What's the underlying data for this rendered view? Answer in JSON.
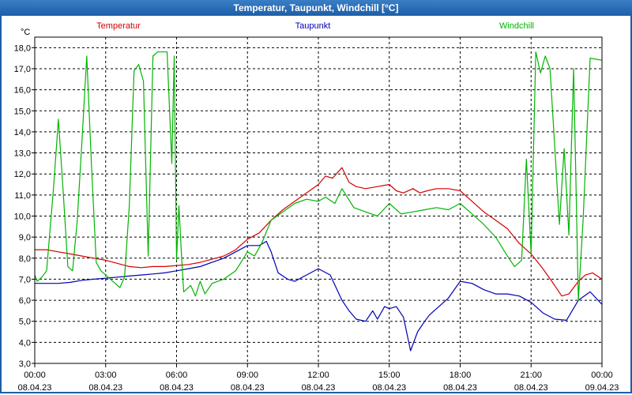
{
  "window": {
    "title": "Temperatur, Taupunkt, Windchill [°C]"
  },
  "chart_data": {
    "type": "line",
    "title": "Temperatur, Taupunkt, Windchill [°C]",
    "ylabel": "°C",
    "xlabel": "",
    "ylim": [
      3.0,
      18.5
    ],
    "xlim": [
      0,
      24
    ],
    "grid": true,
    "yticks": [
      3,
      4,
      5,
      6,
      7,
      8,
      9,
      10,
      11,
      12,
      13,
      14,
      15,
      16,
      17,
      18
    ],
    "ytick_labels": [
      "3,0",
      "4,0",
      "5,0",
      "6,0",
      "7,0",
      "8,0",
      "9,0",
      "10,0",
      "11,0",
      "12,0",
      "13,0",
      "14,0",
      "15,0",
      "16,0",
      "17,0",
      "18,0"
    ],
    "xticks": [
      {
        "x": 0,
        "time": "00:00",
        "date": "08.04.23"
      },
      {
        "x": 3,
        "time": "03:00",
        "date": "08.04.23"
      },
      {
        "x": 6,
        "time": "06:00",
        "date": "08.04.23"
      },
      {
        "x": 9,
        "time": "09:00",
        "date": "08.04.23"
      },
      {
        "x": 12,
        "time": "12:00",
        "date": "08.04.23"
      },
      {
        "x": 15,
        "time": "15:00",
        "date": "08.04.23"
      },
      {
        "x": 18,
        "time": "18:00",
        "date": "08.04.23"
      },
      {
        "x": 21,
        "time": "21:00",
        "date": "08.04.23"
      },
      {
        "x": 24,
        "time": "00:00",
        "date": "09.04.23"
      }
    ],
    "legend": [
      {
        "name": "Temperatur",
        "color": "#d40000"
      },
      {
        "name": "Taupunkt",
        "color": "#0000b4"
      },
      {
        "name": "Windchill",
        "color": "#00b400"
      }
    ],
    "series": [
      {
        "name": "Temperatur",
        "color": "#d40000",
        "x": [
          0,
          0.5,
          1,
          1.5,
          2,
          2.5,
          3,
          3.5,
          4,
          4.5,
          5,
          5.5,
          6,
          6.5,
          7,
          7.5,
          8,
          8.5,
          9,
          9.5,
          10,
          10.5,
          11,
          11.5,
          12,
          12.3,
          12.6,
          13,
          13.3,
          13.6,
          14,
          14.5,
          15,
          15.3,
          15.6,
          16,
          16.3,
          16.6,
          17,
          17.5,
          18,
          18.5,
          19,
          19.5,
          20,
          20.5,
          21,
          21.5,
          22,
          22.3,
          22.6,
          23,
          23.3,
          23.6,
          24
        ],
        "values": [
          8.4,
          8.4,
          8.3,
          8.2,
          8.1,
          8.0,
          7.9,
          7.75,
          7.6,
          7.55,
          7.6,
          7.6,
          7.65,
          7.7,
          7.8,
          7.95,
          8.1,
          8.4,
          8.9,
          9.2,
          9.8,
          10.3,
          10.7,
          11.1,
          11.5,
          11.9,
          11.8,
          12.3,
          11.6,
          11.4,
          11.3,
          11.4,
          11.5,
          11.2,
          11.1,
          11.3,
          11.1,
          11.2,
          11.3,
          11.3,
          11.2,
          10.7,
          10.2,
          9.8,
          9.4,
          8.7,
          8.2,
          7.5,
          6.7,
          6.2,
          6.3,
          6.9,
          7.2,
          7.3,
          7.0
        ]
      },
      {
        "name": "Taupunkt",
        "color": "#0000b4",
        "x": [
          0,
          0.5,
          1,
          1.5,
          2,
          2.5,
          3,
          3.5,
          4,
          4.5,
          5,
          5.5,
          6,
          6.5,
          7,
          7.5,
          8,
          8.5,
          9,
          9.5,
          9.8,
          10,
          10.3,
          10.7,
          11,
          11.5,
          12,
          12.5,
          13,
          13.3,
          13.6,
          14,
          14.3,
          14.5,
          14.8,
          15,
          15.3,
          15.6,
          15.9,
          16.2,
          16.5,
          16.7,
          17,
          17.5,
          18,
          18.5,
          19,
          19.5,
          20,
          20.5,
          21,
          21.5,
          22,
          22.5,
          23,
          23.5,
          24
        ],
        "values": [
          6.8,
          6.8,
          6.8,
          6.85,
          6.95,
          7.0,
          7.05,
          7.1,
          7.15,
          7.2,
          7.25,
          7.3,
          7.4,
          7.5,
          7.6,
          7.8,
          8.0,
          8.3,
          8.6,
          8.6,
          8.8,
          8.3,
          7.3,
          7.0,
          6.9,
          7.2,
          7.5,
          7.2,
          6.0,
          5.5,
          5.1,
          5.0,
          5.5,
          5.1,
          5.7,
          5.6,
          5.7,
          5.2,
          3.6,
          4.5,
          5.0,
          5.3,
          5.6,
          6.1,
          6.9,
          6.8,
          6.5,
          6.3,
          6.3,
          6.2,
          5.9,
          5.4,
          5.1,
          5.05,
          6.0,
          6.4,
          5.8
        ]
      },
      {
        "name": "Windchill",
        "color": "#00b400",
        "x": [
          0,
          0.1,
          0.3,
          0.5,
          0.8,
          1.0,
          1.2,
          1.4,
          1.6,
          1.8,
          2.0,
          2.2,
          2.4,
          2.6,
          2.8,
          3.0,
          3.2,
          3.4,
          3.6,
          3.8,
          4.0,
          4.2,
          4.4,
          4.6,
          4.8,
          5.0,
          5.2,
          5.4,
          5.6,
          5.8,
          5.9,
          6.0,
          6.1,
          6.2,
          6.3,
          6.4,
          6.6,
          6.8,
          7.0,
          7.2,
          7.5,
          8.0,
          8.5,
          9.0,
          9.3,
          9.6,
          10.0,
          10.5,
          11.0,
          11.5,
          12.0,
          12.3,
          12.7,
          13.0,
          13.5,
          14.0,
          14.5,
          15.0,
          15.5,
          16.0,
          16.5,
          17.0,
          17.5,
          18.0,
          18.5,
          19.0,
          19.5,
          20.0,
          20.3,
          20.6,
          20.8,
          21.0,
          21.2,
          21.4,
          21.6,
          21.8,
          22.0,
          22.2,
          22.4,
          22.6,
          22.8,
          23.0,
          23.2,
          23.5,
          24.0
        ],
        "values": [
          7.2,
          6.9,
          7.1,
          7.4,
          11.4,
          14.6,
          11.2,
          7.6,
          7.4,
          9.8,
          13.6,
          17.6,
          12.4,
          7.8,
          7.4,
          7.2,
          7.0,
          6.8,
          6.6,
          7.1,
          10.5,
          16.9,
          17.2,
          16.4,
          8.1,
          17.6,
          17.8,
          17.8,
          17.8,
          12.5,
          17.6,
          7.9,
          10.5,
          8.3,
          6.4,
          6.5,
          6.7,
          6.2,
          6.9,
          6.3,
          6.8,
          7.0,
          7.4,
          8.3,
          8.1,
          8.7,
          9.8,
          10.2,
          10.6,
          10.8,
          10.7,
          10.9,
          10.6,
          11.3,
          10.4,
          10.2,
          10.0,
          10.6,
          10.1,
          10.2,
          10.3,
          10.4,
          10.3,
          10.6,
          10.1,
          9.6,
          9.0,
          8.1,
          7.6,
          7.9,
          12.7,
          8.2,
          17.8,
          16.8,
          17.6,
          17.0,
          13.3,
          9.6,
          13.2,
          9.1,
          17.0,
          6.0,
          9.8,
          17.5,
          17.4
        ]
      }
    ]
  }
}
